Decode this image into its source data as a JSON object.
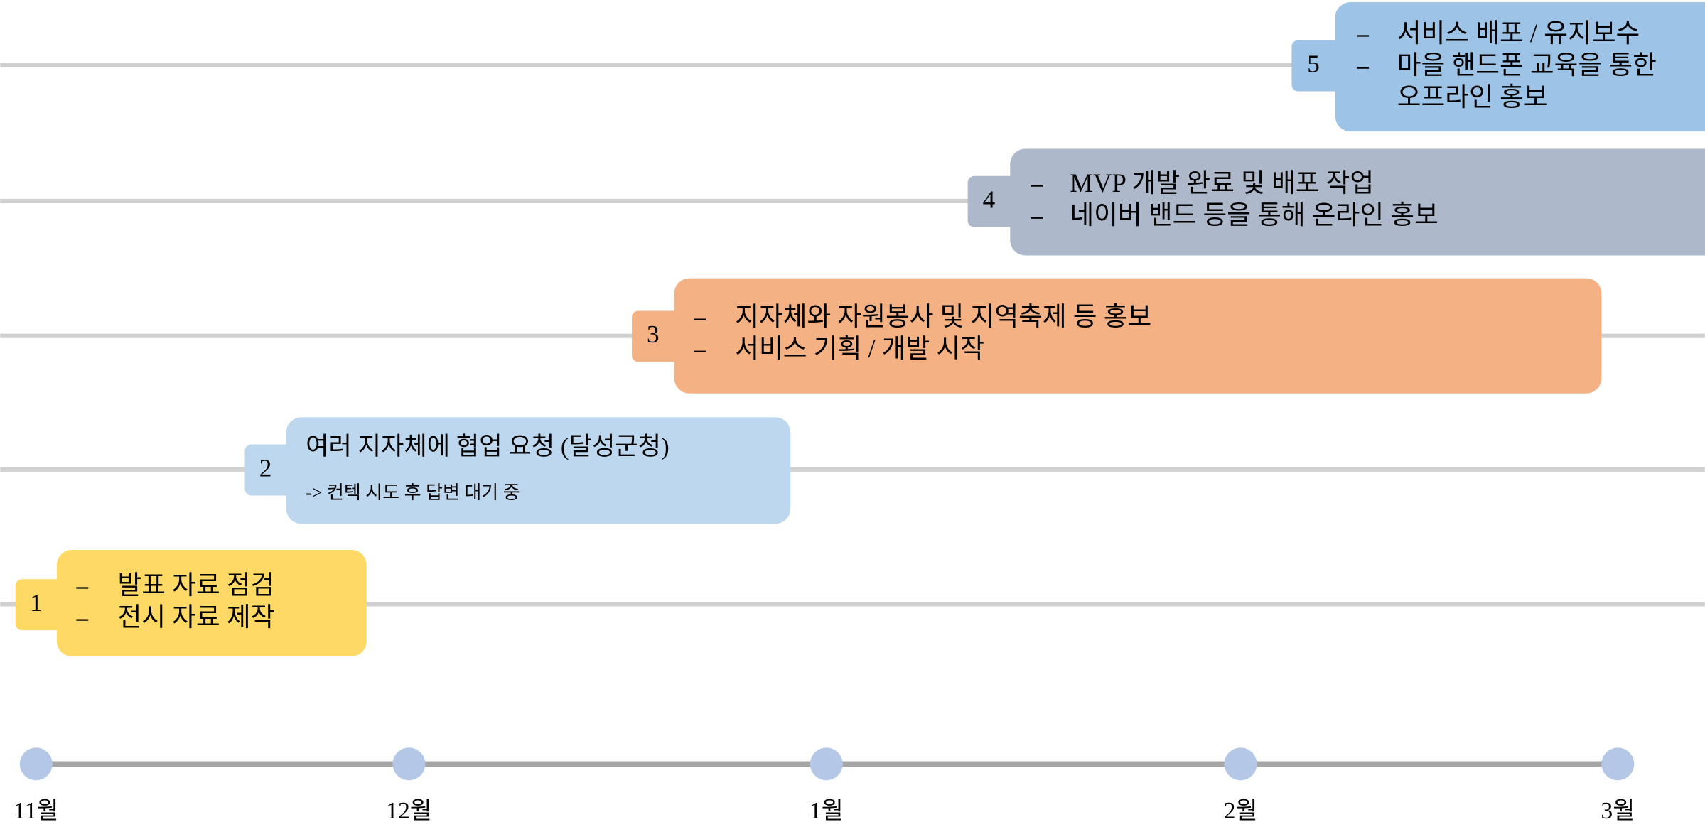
{
  "stages": [
    {
      "number": "1",
      "bullets": [
        [
          "발표 자료 점검"
        ],
        [
          "전시 자료 제작"
        ]
      ]
    },
    {
      "number": "2",
      "heading": "여러 지자체에 협업 요청 (달성군청)",
      "note": "-> 컨텍 시도 후 답변 대기 중"
    },
    {
      "number": "3",
      "bullets": [
        [
          "지자체와 자원봉사 및 지역축제 등 홍보"
        ],
        [
          "서비스 기획 / 개발 시작"
        ]
      ]
    },
    {
      "number": "4",
      "bullets": [
        [
          "MVP 개발 완료 및 배포 작업"
        ],
        [
          "네이버 밴드 등을 통해 온라인 홍보"
        ]
      ]
    },
    {
      "number": "5",
      "bullets": [
        [
          "서비스 배포 / 유지보수"
        ],
        [
          "마을 핸드폰 교육을 통한",
          "오프라인 홍보"
        ]
      ]
    }
  ],
  "months": [
    "11월",
    "12월",
    "1월",
    "2월",
    "3월"
  ]
}
